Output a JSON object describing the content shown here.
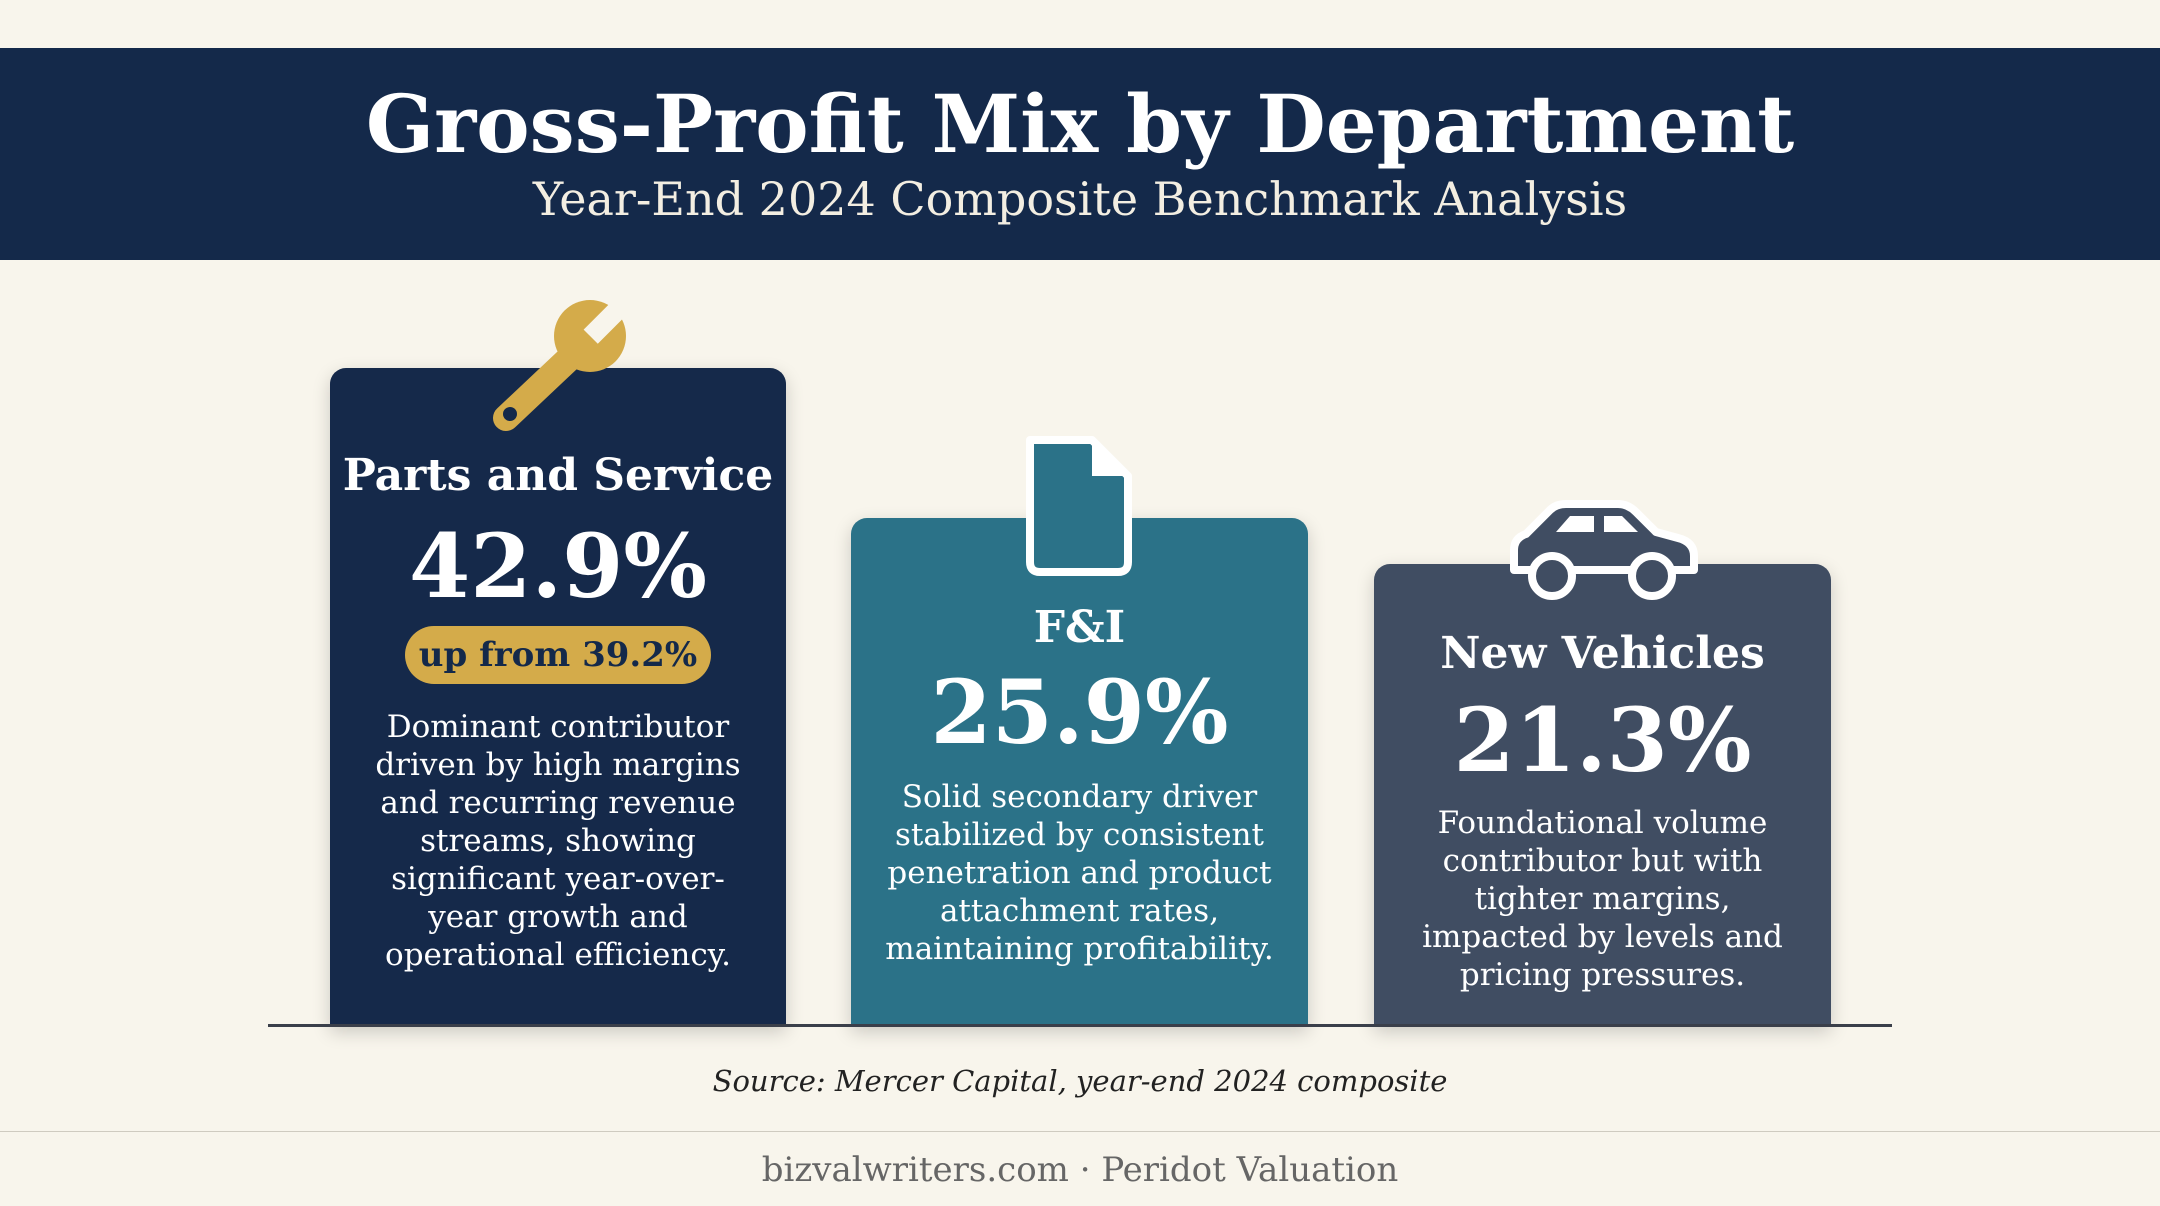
{
  "header": {
    "title": "Gross-Profit Mix by Department",
    "subtitle": "Year-End 2024 Composite Benchmark Analysis"
  },
  "chart_data": {
    "type": "bar",
    "title": "Gross-Profit Mix by Department",
    "subtitle": "Year-End 2024 Composite Benchmark Analysis",
    "categories": [
      "Parts and Service",
      "F&I",
      "New Vehicles"
    ],
    "values": [
      42.9,
      25.9,
      21.3
    ],
    "value_labels": [
      "42.9%",
      "25.9%",
      "21.3%"
    ],
    "unit": "%",
    "annotations": [
      {
        "category": "Parts and Service",
        "badge": "up from 39.2%",
        "description": "Dominant contributor driven by high margins and recurring revenue streams, showing significant year-over-year growth and operational efficiency."
      },
      {
        "category": "F&I",
        "description": "Solid secondary driver stabilized by consistent penetration and product attachment rates, maintaining profitability."
      },
      {
        "category": "New Vehicles",
        "description": "Foundational volume contributor but with tighter margins, impacted by levels and pricing pressures."
      }
    ],
    "icons": [
      "wrench-icon",
      "document-icon",
      "car-icon"
    ],
    "colors": [
      "#15294a",
      "#2b7288",
      "#404d62"
    ],
    "badge_color": "#d4ab4a",
    "grid": false
  },
  "source": "Source: Mercer Capital, year-end 2024 composite",
  "footer": "bizvalwriters.com · Peridot Valuation"
}
